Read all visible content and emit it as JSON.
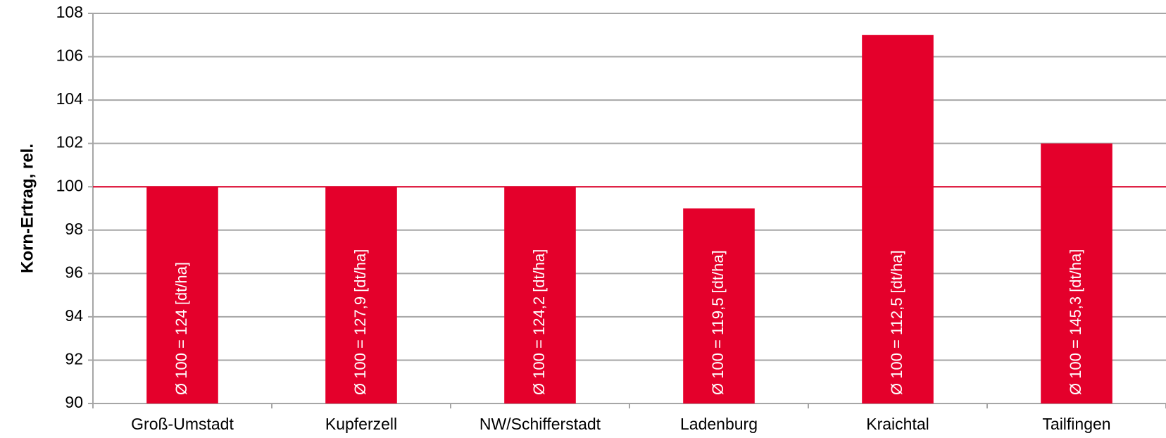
{
  "chart_data": {
    "type": "bar",
    "y_label": "Korn-Ertrag, rel.",
    "categories": [
      "Groß-Umstadt",
      "Kupferzell",
      "NW/Schifferstadt",
      "Ladenburg",
      "Kraichtal",
      "Tailfingen"
    ],
    "values": [
      100,
      100,
      100,
      99,
      107,
      102
    ],
    "bar_annotations": [
      "Ø 100 = 124 [dt/ha]",
      "Ø 100 = 127,9 [dt/ha]",
      "Ø 100 = 124,2 [dt/ha]",
      "Ø 100 = 119,5 [dt/ha]",
      "Ø 100 = 112,5 [dt/ha]",
      "Ø 100 = 145,3 [dt/ha]"
    ],
    "color": "#e4002b",
    "reference_line": 100,
    "reference_color": "#e4002b",
    "ylim": [
      90,
      108
    ],
    "yticks": [
      90,
      92,
      94,
      96,
      98,
      100,
      102,
      104,
      106,
      108
    ],
    "grid": true
  }
}
